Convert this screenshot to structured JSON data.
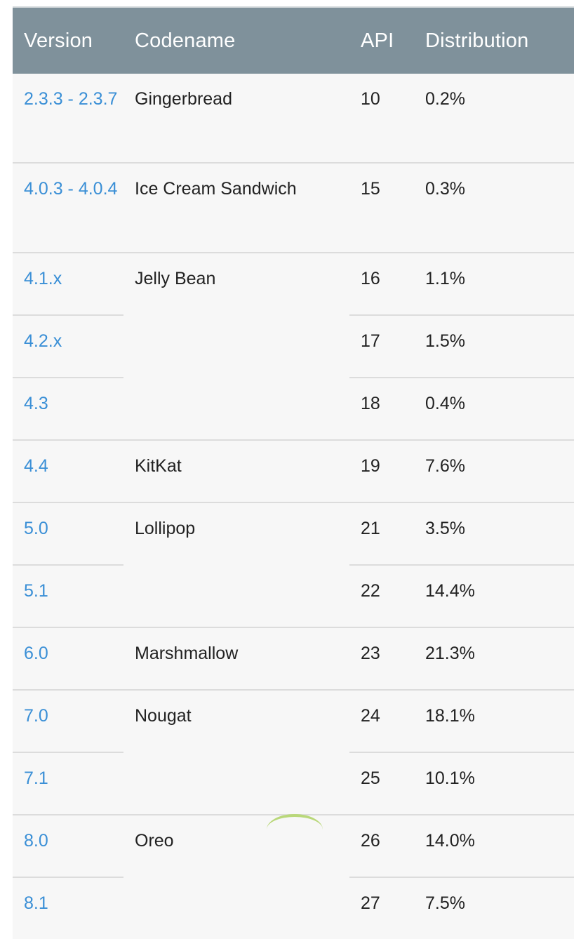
{
  "table": {
    "headers": {
      "version": "Version",
      "codename": "Codename",
      "api": "API",
      "distribution": "Distribution"
    },
    "rows": [
      {
        "version": "2.3.3 - 2.3.7",
        "codename": "Gingerbread",
        "api": "10",
        "distribution": "0.2%"
      },
      {
        "version": "4.0.3 - 4.0.4",
        "codename": "Ice Cream Sandwich",
        "api": "15",
        "distribution": "0.3%"
      },
      {
        "version": "4.1.x",
        "codename": "Jelly Bean",
        "api": "16",
        "distribution": "1.1%"
      },
      {
        "version": "4.2.x",
        "api": "17",
        "distribution": "1.5%"
      },
      {
        "version": "4.3",
        "api": "18",
        "distribution": "0.4%"
      },
      {
        "version": "4.4",
        "codename": "KitKat",
        "api": "19",
        "distribution": "7.6%"
      },
      {
        "version": "5.0",
        "codename": "Lollipop",
        "api": "21",
        "distribution": "3.5%"
      },
      {
        "version": "5.1",
        "api": "22",
        "distribution": "14.4%"
      },
      {
        "version": "6.0",
        "codename": "Marshmallow",
        "api": "23",
        "distribution": "21.3%"
      },
      {
        "version": "7.0",
        "codename": "Nougat",
        "api": "24",
        "distribution": "18.1%"
      },
      {
        "version": "7.1",
        "api": "25",
        "distribution": "10.1%"
      },
      {
        "version": "8.0",
        "codename": "Oreo",
        "api": "26",
        "distribution": "14.0%"
      },
      {
        "version": "8.1",
        "api": "27",
        "distribution": "7.5%"
      }
    ]
  },
  "colors": {
    "header_bg": "#7f919b",
    "link": "#3a8fd6",
    "row_bg": "#f7f7f7"
  }
}
